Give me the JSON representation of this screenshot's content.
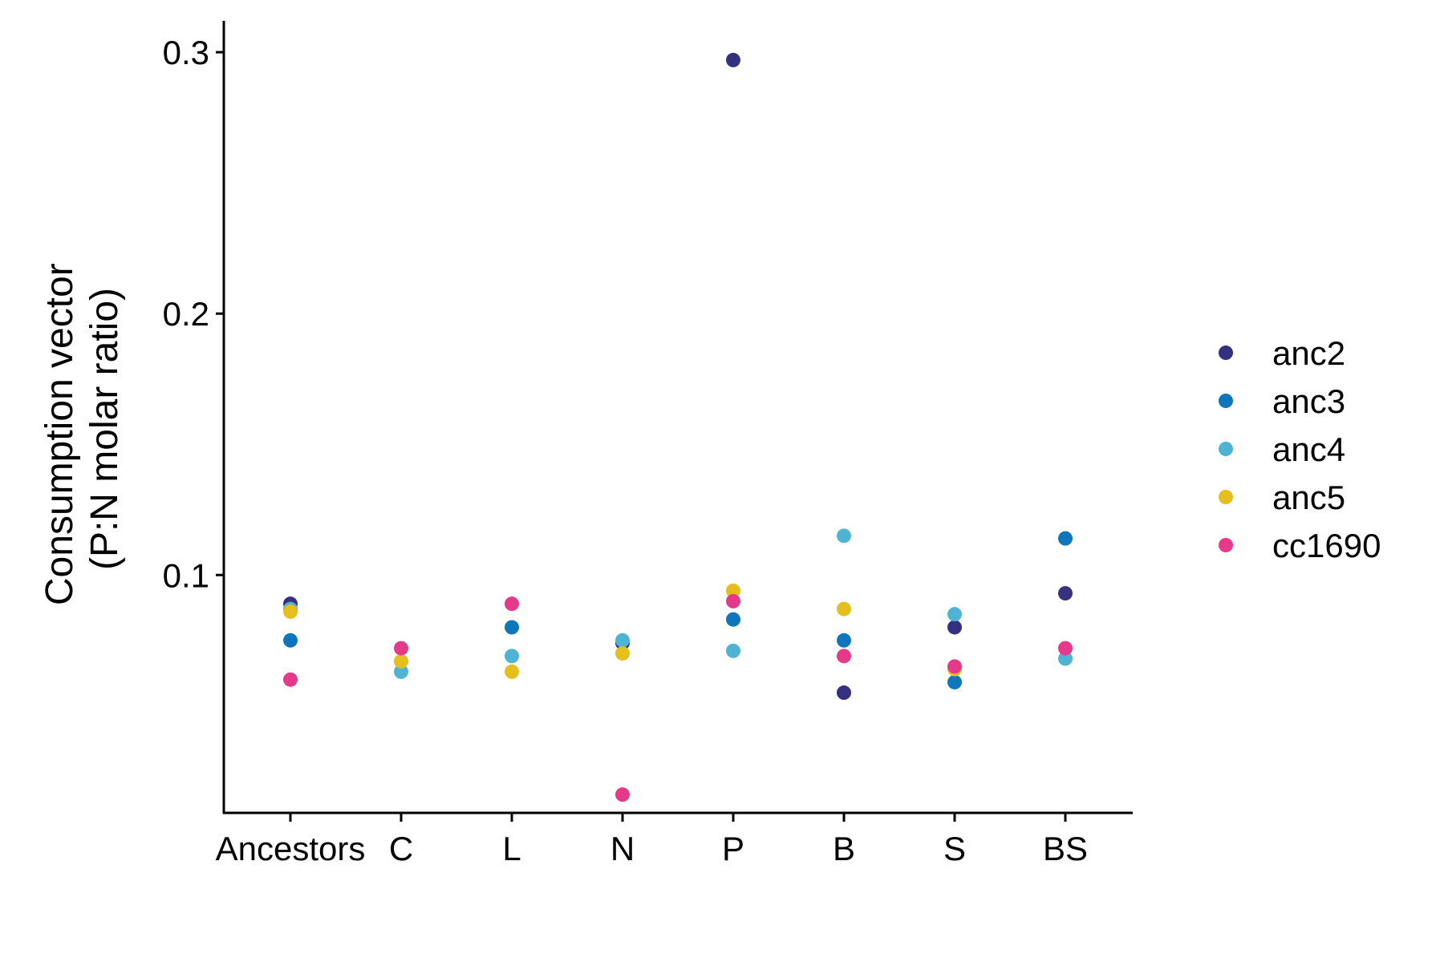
{
  "chart_data": {
    "type": "scatter",
    "categories": [
      "Ancestors",
      "C",
      "L",
      "N",
      "P",
      "B",
      "S",
      "BS"
    ],
    "ylabel_line1": "Consumption vector",
    "ylabel_line2": "(P:N molar ratio)",
    "xlabel": "",
    "ylim": [
      0.009,
      0.312
    ],
    "yticks": [
      0.1,
      0.2,
      0.3
    ],
    "ytick_labels": [
      "0.1",
      "0.2",
      "0.3"
    ],
    "grid": false,
    "legend_position": "right",
    "series": [
      {
        "name": "anc2",
        "color": "#35307F",
        "values": [
          0.089,
          null,
          null,
          0.074,
          0.297,
          0.055,
          0.08,
          0.093
        ]
      },
      {
        "name": "anc3",
        "color": "#0E76BA",
        "values": [
          0.075,
          null,
          0.08,
          null,
          0.083,
          0.075,
          0.059,
          0.114
        ]
      },
      {
        "name": "anc4",
        "color": "#4FB4D4",
        "values": [
          0.087,
          0.063,
          0.069,
          0.075,
          0.071,
          0.115,
          0.085,
          0.068
        ]
      },
      {
        "name": "anc5",
        "color": "#E6BE1E",
        "values": [
          0.086,
          0.067,
          0.063,
          0.07,
          0.094,
          0.087,
          0.064,
          null
        ]
      },
      {
        "name": "cc1690",
        "color": "#E5398B",
        "values": [
          0.06,
          0.072,
          0.089,
          0.016,
          0.09,
          0.069,
          0.065,
          0.072
        ]
      }
    ]
  }
}
